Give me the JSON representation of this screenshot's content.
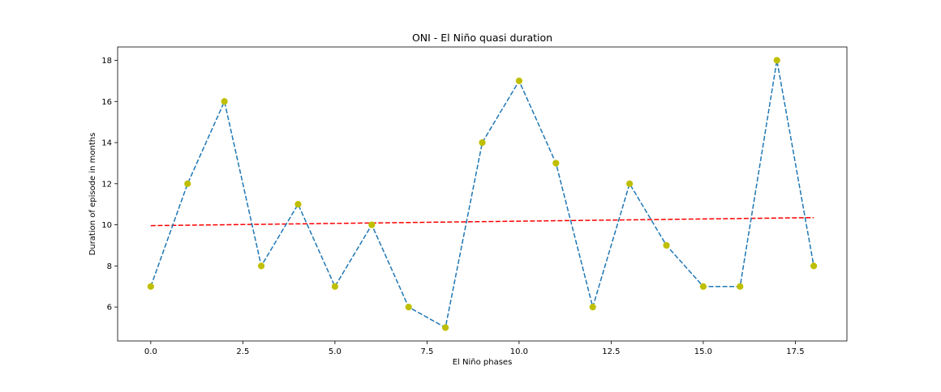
{
  "chart_data": {
    "type": "line",
    "title": "ONI - El Niño quasi duration",
    "xlabel": "El Niño phases",
    "ylabel": "Duration of episode in months",
    "xlim": [
      -0.9,
      18.9
    ],
    "ylim": [
      4.35,
      18.65
    ],
    "grid": false,
    "x_ticks": [
      0.0,
      2.5,
      5.0,
      7.5,
      10.0,
      12.5,
      15.0,
      17.5
    ],
    "x_tick_labels": [
      "0.0",
      "2.5",
      "5.0",
      "7.5",
      "10.0",
      "12.5",
      "15.0",
      "17.5"
    ],
    "y_ticks": [
      6,
      8,
      10,
      12,
      14,
      16,
      18
    ],
    "y_tick_labels": [
      "6",
      "8",
      "10",
      "12",
      "14",
      "16",
      "18"
    ],
    "x": [
      0,
      1,
      2,
      3,
      4,
      5,
      6,
      7,
      8,
      9,
      10,
      11,
      12,
      13,
      14,
      15,
      16,
      17,
      18
    ],
    "series": [
      {
        "values": [
          7,
          12,
          16,
          8,
          11,
          7,
          10,
          6,
          5,
          14,
          17,
          13,
          6,
          12,
          9,
          7,
          7,
          18,
          8
        ],
        "line_color": "#1f77b4",
        "line_style": "dashed",
        "marker_color": "#bfbf00"
      },
      {
        "x": [
          0,
          18
        ],
        "values": [
          9.96,
          10.35
        ],
        "line_color": "#ff0000",
        "line_style": "dashed"
      }
    ]
  }
}
